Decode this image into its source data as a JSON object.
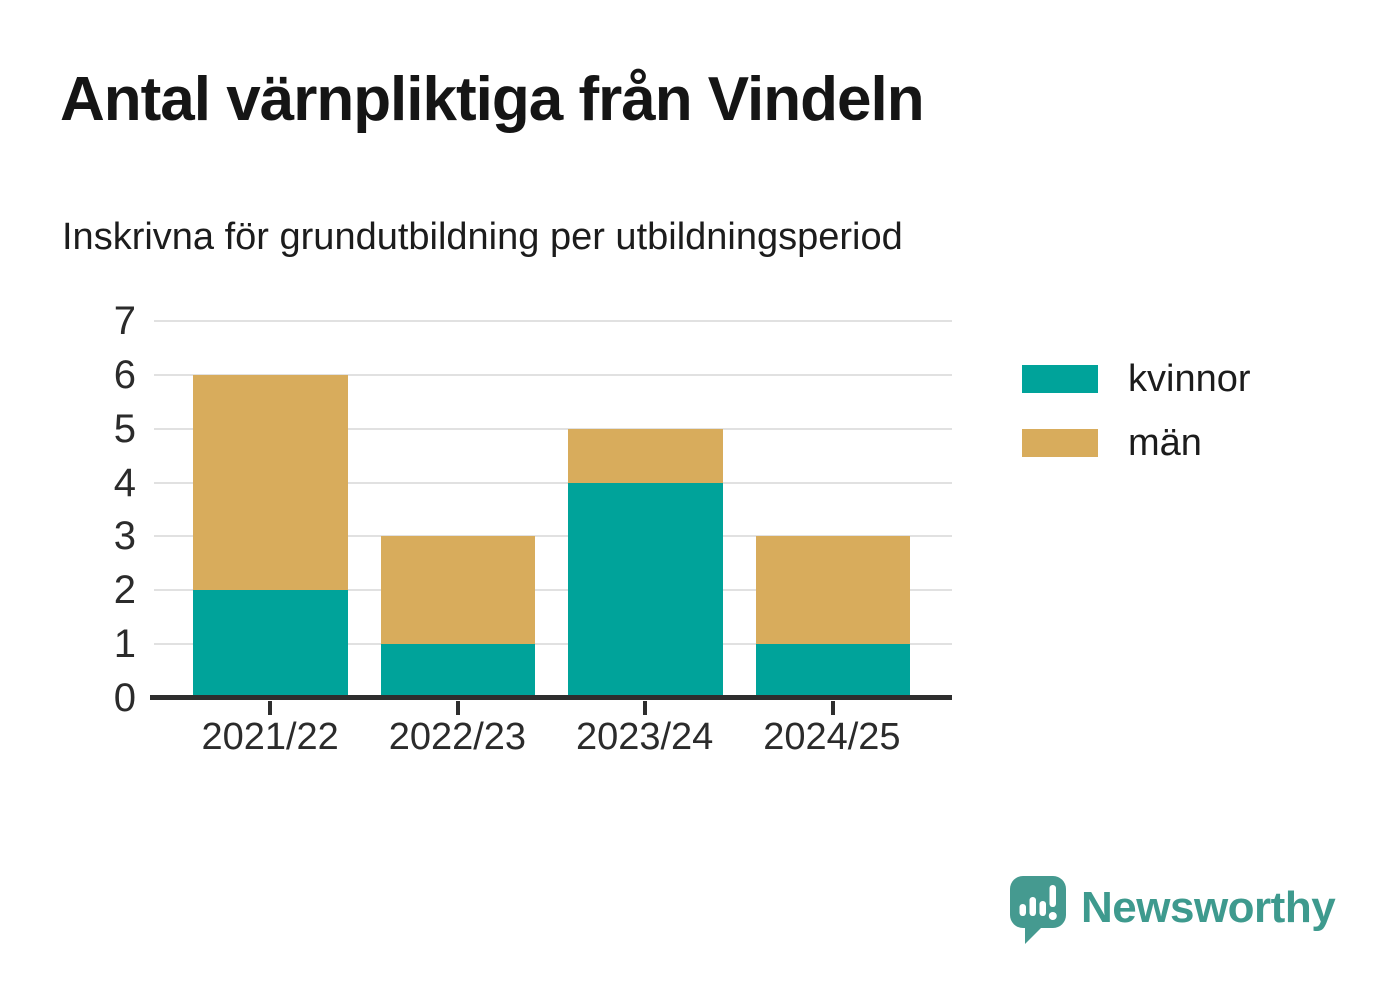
{
  "chart_data": {
    "type": "bar",
    "stacked": true,
    "title": "Antal värnpliktiga från Vindeln",
    "subtitle": "Inskrivna för grundutbildning per utbildningsperiod",
    "categories": [
      "2021/22",
      "2022/23",
      "2023/24",
      "2024/25"
    ],
    "series": [
      {
        "name": "kvinnor",
        "color": "#00a39a",
        "values": [
          2,
          1,
          4,
          1
        ]
      },
      {
        "name": "män",
        "color": "#d8ac5c",
        "values": [
          4,
          2,
          1,
          2
        ]
      }
    ],
    "totals": [
      6,
      3,
      5,
      3
    ],
    "ylim": [
      0,
      7
    ],
    "yticks": [
      0,
      1,
      2,
      3,
      4,
      5,
      6,
      7
    ],
    "grid": true,
    "legend_position": "right",
    "xlabel": "",
    "ylabel": ""
  },
  "legend": {
    "items": [
      {
        "label": "kvinnor",
        "color": "#00a39a"
      },
      {
        "label": "män",
        "color": "#d8ac5c"
      }
    ]
  },
  "branding": {
    "name": "Newsworthy",
    "color": "#3e9a8e",
    "logo_color": "#459a90",
    "logo_icon": "speech-bubble-bar-chart-icon"
  },
  "colors": {
    "axis": "#2e2e2e",
    "gridline": "#e1e1e1",
    "title_text": "#151515",
    "tick_label": "#2b2b2b"
  }
}
